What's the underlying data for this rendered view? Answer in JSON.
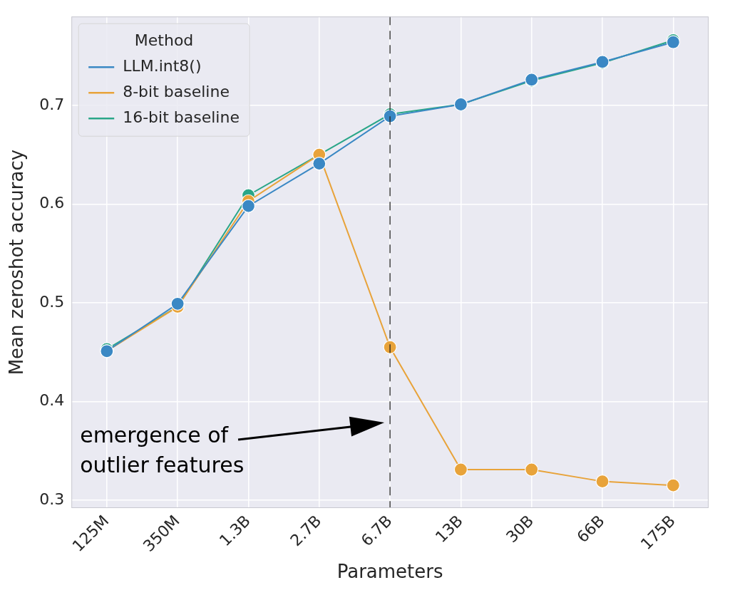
{
  "chart_data": {
    "type": "line",
    "x_label": "Parameters",
    "y_label": "Mean zeroshot accuracy",
    "categories": [
      "125M",
      "350M",
      "1.3B",
      "2.7B",
      "6.7B",
      "13B",
      "30B",
      "66B",
      "175B"
    ],
    "series": [
      {
        "name": "LLM.int8()",
        "color": "#3a88c4",
        "values": [
          0.451,
          0.499,
          0.598,
          0.641,
          0.689,
          0.701,
          0.726,
          0.744,
          0.764
        ]
      },
      {
        "name": "8-bit baseline",
        "color": "#e8a33a",
        "values": [
          0.451,
          0.496,
          0.603,
          0.65,
          0.455,
          0.331,
          0.331,
          0.319,
          0.315
        ]
      },
      {
        "name": "16-bit baseline",
        "color": "#2aa688",
        "values": [
          0.453,
          0.496,
          0.609,
          0.65,
          0.691,
          0.701,
          0.725,
          0.743,
          0.766
        ]
      }
    ],
    "ylim": [
      0.292,
      0.79
    ],
    "yticks": [
      0.3,
      0.4,
      0.5,
      0.6,
      0.7
    ],
    "grid": true,
    "legend": "upper left",
    "legend_title": "Method",
    "marker": "circle",
    "line_style": "solid",
    "annotations": [
      {
        "text": [
          "emergence of",
          "outlier features"
        ],
        "x": "6.7B",
        "line_style": "dashed"
      }
    ]
  }
}
